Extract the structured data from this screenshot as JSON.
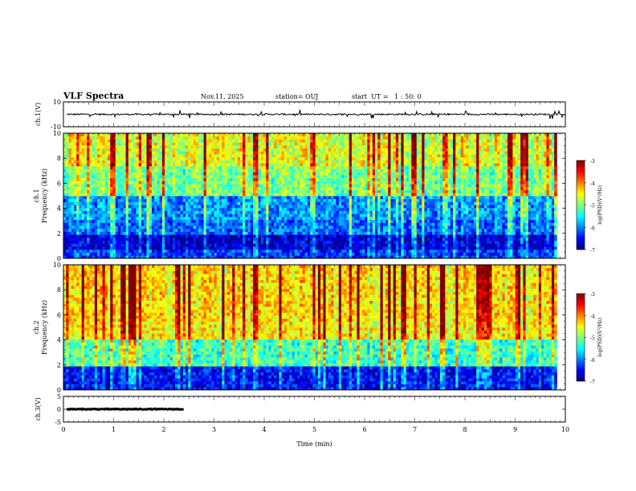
{
  "header": {
    "title": "VLF Spectra",
    "date": "Nov.11, 2025",
    "station": "station= OUJ",
    "start": "start  UT =   1 : 50: 0"
  },
  "chart_data": [
    {
      "type": "line",
      "panel": "ch1-waveform",
      "ylabel": "ch.1(V)",
      "ylim": [
        -10,
        10
      ],
      "yticks": [
        "10",
        "-10"
      ],
      "baseline": 0,
      "noise_amplitude": 1.2,
      "xlim": [
        0,
        10
      ]
    },
    {
      "type": "heatmap",
      "panel": "ch1-spectrogram",
      "ylabel": "ch.1\nFrequency  (kHz)",
      "ylim": [
        0,
        10
      ],
      "yticks": [
        "0",
        "2",
        "4",
        "6",
        "8",
        "10"
      ],
      "xlim": [
        0,
        9.83
      ],
      "colorbar": {
        "label": "log(PSD)(V²/Hz)",
        "range": [
          -7,
          -3
        ],
        "ticks": [
          "-3",
          "-4",
          "-5",
          "-6",
          "-7"
        ]
      },
      "bands": [
        {
          "fmin": 0,
          "fmax": 0.6,
          "logpsd": -6.3
        },
        {
          "fmin": 0.6,
          "fmax": 1.8,
          "logpsd": -6.7
        },
        {
          "fmin": 1.8,
          "fmax": 3.0,
          "logpsd": -6.1
        },
        {
          "fmin": 3.0,
          "fmax": 5.0,
          "logpsd": -5.9
        },
        {
          "fmin": 5.0,
          "fmax": 7.5,
          "logpsd": -5.0
        },
        {
          "fmin": 7.5,
          "fmax": 10,
          "logpsd": -4.6
        }
      ]
    },
    {
      "type": "heatmap",
      "panel": "ch2-spectrogram",
      "ylabel": "ch.2\nFrequency  (kHz)",
      "ylim": [
        0,
        10
      ],
      "yticks": [
        "0",
        "2",
        "4",
        "6",
        "8",
        "10"
      ],
      "xlim": [
        0,
        9.83
      ],
      "colorbar": {
        "label": "log(PSD)(V²/Hz)",
        "range": [
          -7,
          -3
        ],
        "ticks": [
          "-3",
          "-4",
          "-5",
          "-6",
          "-7"
        ]
      },
      "bands": [
        {
          "fmin": 0,
          "fmax": 2.0,
          "logpsd": -6.5
        },
        {
          "fmin": 2.0,
          "fmax": 4.0,
          "logpsd": -5.3
        },
        {
          "fmin": 4.0,
          "fmax": 5.5,
          "logpsd": -4.5
        },
        {
          "fmin": 5.5,
          "fmax": 10,
          "logpsd": -4.4
        }
      ]
    },
    {
      "type": "line",
      "panel": "ch3-waveform",
      "ylabel": "ch.3(V)",
      "ylim": [
        -5,
        5
      ],
      "yticks": [
        "5",
        "0",
        "-5"
      ],
      "baseline": 0,
      "noise_amplitude": 0.3,
      "xlim": [
        0,
        9.83
      ],
      "gap_at": 2.45
    }
  ],
  "xaxis": {
    "label": "Time  (min)",
    "ticks": [
      "0",
      "1",
      "2",
      "3",
      "4",
      "5",
      "6",
      "7",
      "8",
      "9",
      "10"
    ],
    "xlim": [
      0,
      10
    ]
  }
}
